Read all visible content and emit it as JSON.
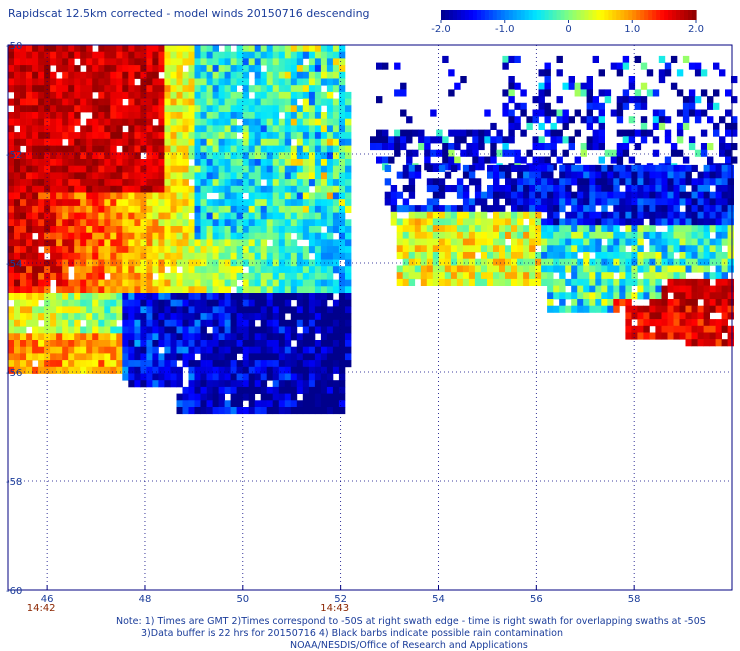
{
  "chart_data": {
    "type": "heatmap",
    "title": "Rapidscat 12.5km corrected - model winds 20150716 descending",
    "colorbar": {
      "min": -2.0,
      "max": 2.0,
      "tick_labels": [
        "-2.0",
        "-1.0",
        "0",
        "1.0",
        "2.0"
      ],
      "tick_values": [
        -2.0,
        -1.0,
        0,
        1.0,
        2.0
      ],
      "colors": [
        "#00008c",
        "#0000ff",
        "#0080ff",
        "#00e6ff",
        "#80ff80",
        "#ffff00",
        "#ff9000",
        "#ff0000",
        "#8c0000"
      ]
    },
    "x_axis": {
      "range": [
        45.2,
        60.0
      ],
      "ticks": [
        46,
        48,
        50,
        52,
        54,
        56,
        58
      ],
      "tick_labels": [
        "46",
        "48",
        "50",
        "52",
        "54",
        "56",
        "58"
      ],
      "gridlines": "dotted"
    },
    "y_axis": {
      "range": [
        -60,
        -50
      ],
      "ticks": [
        -50,
        -52,
        -54,
        -56,
        -58,
        -60
      ],
      "tick_labels": [
        "-50",
        "-52",
        "-54",
        "-56",
        "-58",
        "-60"
      ],
      "gridlines": "dotted"
    },
    "time_labels": [
      {
        "x": 46,
        "label": "14:42"
      },
      {
        "x": 52,
        "label": "14:43"
      }
    ],
    "swaths": [
      {
        "lon_range": [
          45.2,
          52.2
        ],
        "lat_range": [
          -56.6,
          -50.0
        ],
        "pattern": "west: positive 1.0-2.0, east: negative -0.5 to -2.0"
      },
      {
        "lon_range": [
          52.9,
          60.0
        ],
        "lat_range": [
          -55.5,
          -50.3
        ],
        "pattern": "north: negative -1.0 to -2.0, southeast: positive 1.5-2.0"
      }
    ]
  },
  "notes": {
    "line1": "Note: 1) Times are GMT 2)Times correspond to -50S at right swath edge - time is right swath for overlapping swaths at -50S",
    "line2": "3)Data buffer is 22 hrs for 20150716 4) Black barbs indicate possible rain contamination",
    "line3": "NOAA/NESDIS/Office of Research and Applications"
  }
}
